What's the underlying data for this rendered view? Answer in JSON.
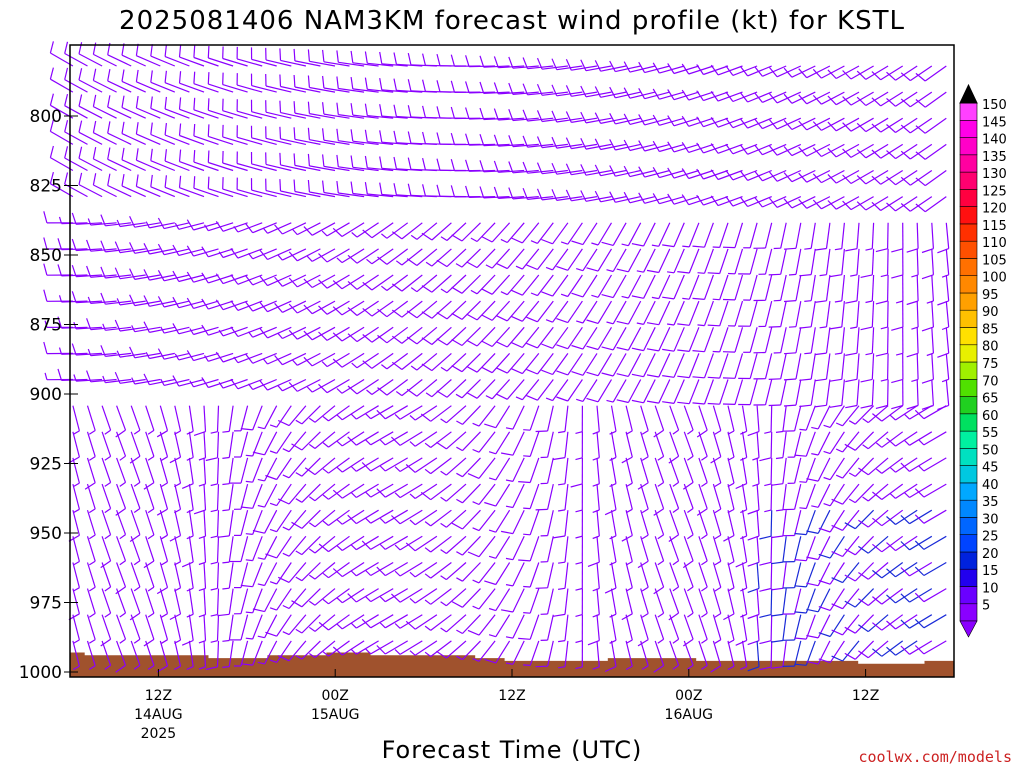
{
  "chart_data": {
    "type": "wind_barb_profile",
    "title": "2025081406 NAM3KM forecast wind profile (kt) for KSTL",
    "xlabel": "Forecast Time (UTC)",
    "ylabel": "",
    "y_axis": {
      "scale": "pressure (inverted)",
      "range": [
        1000,
        780
      ],
      "ticks": [
        "800",
        "825",
        "850",
        "875",
        "900",
        "925",
        "950",
        "975",
        "1000"
      ]
    },
    "x_axis": {
      "range_hours": [
        6,
        66
      ],
      "ticks": [
        {
          "hour": 12,
          "label": "12Z",
          "sub": "14AUG",
          "sub2": "2025"
        },
        {
          "hour": 24,
          "label": "00Z",
          "sub": "15AUG",
          "sub2": ""
        },
        {
          "hour": 36,
          "label": "12Z",
          "sub": "",
          "sub2": ""
        },
        {
          "hour": 48,
          "label": "00Z",
          "sub": "16AUG",
          "sub2": ""
        },
        {
          "hour": 60,
          "label": "12Z",
          "sub": "",
          "sub2": ""
        }
      ]
    },
    "colorbar": {
      "units": "kt",
      "labels": [
        "5",
        "10",
        "15",
        "20",
        "25",
        "30",
        "35",
        "40",
        "45",
        "50",
        "55",
        "60",
        "65",
        "70",
        "75",
        "80",
        "85",
        "90",
        "95",
        "100",
        "105",
        "110",
        "115",
        "120",
        "125",
        "130",
        "135",
        "140",
        "145",
        "150"
      ],
      "colors": [
        "#8a00ff",
        "#6a00ff",
        "#2200ee",
        "#0022dd",
        "#0044ff",
        "#0066ff",
        "#0088ff",
        "#00a8ff",
        "#00c8e0",
        "#00e0c0",
        "#00f0a0",
        "#00e060",
        "#20d020",
        "#50e000",
        "#a0f000",
        "#e8f000",
        "#ffe000",
        "#ffc000",
        "#ffa000",
        "#ff8800",
        "#ff7000",
        "#ff5000",
        "#ff3000",
        "#ff1010",
        "#ff0040",
        "#ff0070",
        "#ff00a0",
        "#ff00c8",
        "#ff00e8",
        "#ff40ff"
      ]
    },
    "surface_pressure_hpa": [
      {
        "hour": 6.0,
        "p": 993.0
      },
      {
        "hour": 7.0,
        "p": 993.0
      },
      {
        "hour": 7.0,
        "p": 994.0
      },
      {
        "hour": 15.4,
        "p": 994.0
      },
      {
        "hour": 15.4,
        "p": 995.0
      },
      {
        "hour": 19.4,
        "p": 995.0
      },
      {
        "hour": 19.4,
        "p": 994.0
      },
      {
        "hour": 23.4,
        "p": 994.0
      },
      {
        "hour": 23.4,
        "p": 993.0
      },
      {
        "hour": 26.4,
        "p": 993.0
      },
      {
        "hour": 26.4,
        "p": 994.0
      },
      {
        "hour": 33.5,
        "p": 994.0
      },
      {
        "hour": 33.5,
        "p": 995.0
      },
      {
        "hour": 35.5,
        "p": 995.0
      },
      {
        "hour": 35.5,
        "p": 996.0
      },
      {
        "hour": 42.5,
        "p": 996.0
      },
      {
        "hour": 42.5,
        "p": 995.0
      },
      {
        "hour": 48.5,
        "p": 995.0
      },
      {
        "hour": 48.5,
        "p": 996.0
      },
      {
        "hour": 59.5,
        "p": 996.0
      },
      {
        "hour": 59.5,
        "p": 997.0
      },
      {
        "hour": 64.0,
        "p": 997.0
      },
      {
        "hour": 64.0,
        "p": 996.0
      },
      {
        "hour": 66.0,
        "p": 996.0
      }
    ],
    "surface_color": "#a0522d",
    "barb_color": "#8a00ff",
    "barb_color_strong": "#1a2ad8",
    "barbs_note": "wind barbs at hourly columns and ~10 hPa levels; mostly 5-15 kt, west-northwest aloft early, light and variable near surface, southerly to southwesterly later"
  },
  "credit": "coolwx.com/models"
}
